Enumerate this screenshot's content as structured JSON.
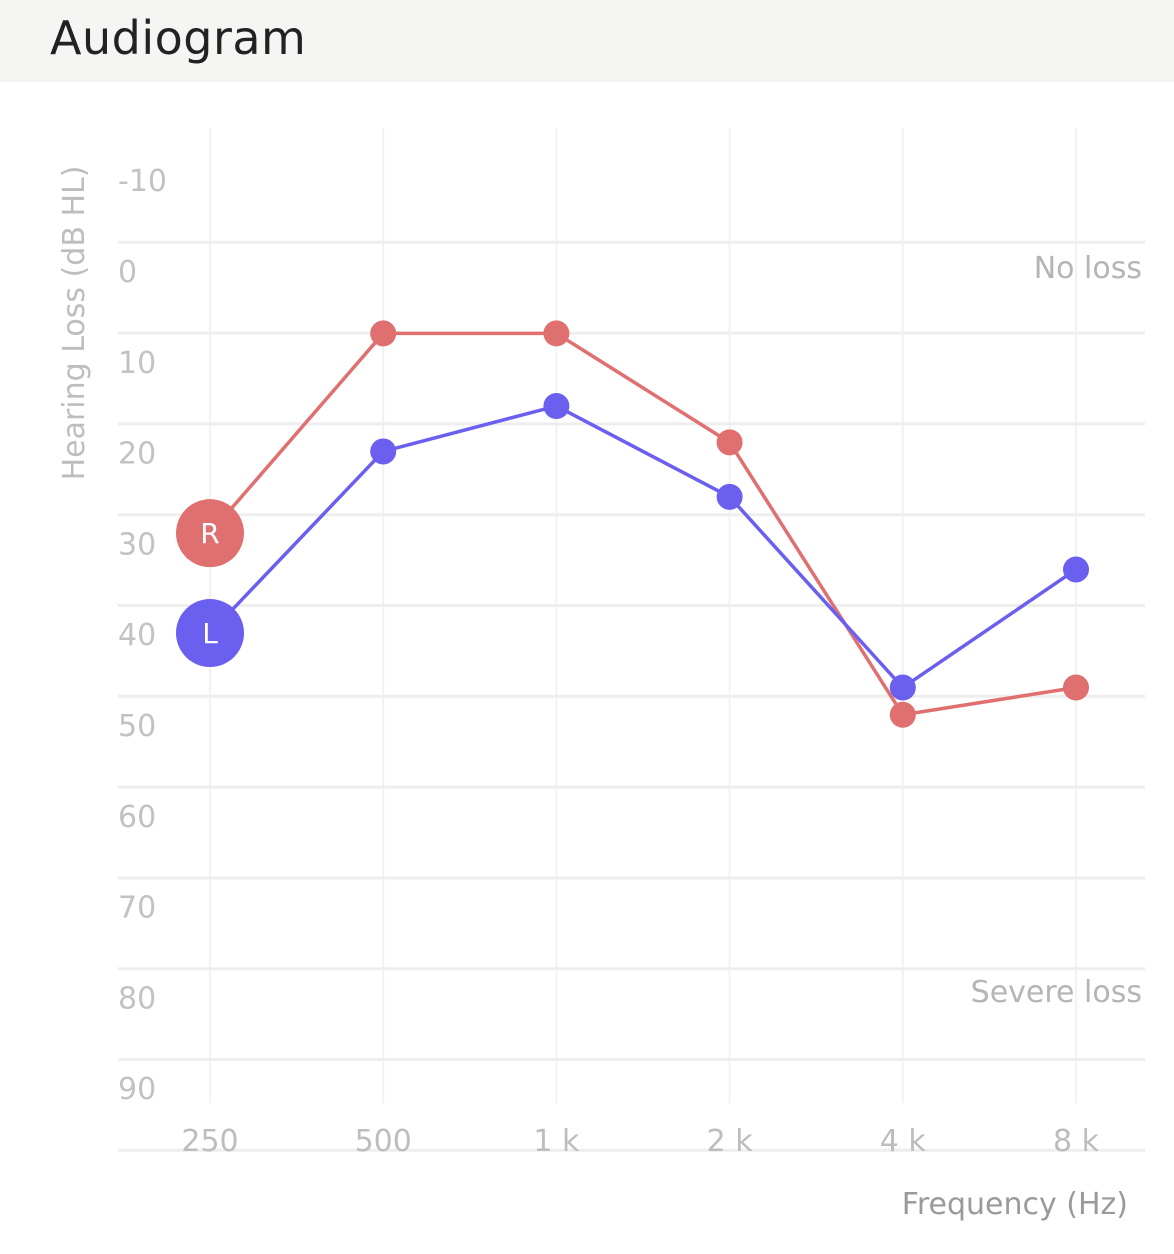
{
  "header": {
    "title": "Audiogram"
  },
  "chart_data": {
    "type": "line",
    "title": "",
    "xlabel": "Frequency (Hz)",
    "ylabel": "Hearing Loss (dB HL)",
    "categories": [
      "250",
      "500",
      "1 k",
      "2 k",
      "4 k",
      "8 k"
    ],
    "y_ticks": [
      -10,
      0,
      10,
      20,
      30,
      40,
      50,
      60,
      70,
      80,
      90
    ],
    "ylim": [
      -10,
      95
    ],
    "y_inverted": true,
    "grid": true,
    "annotations": {
      "top": "No loss",
      "bottom": "Severe loss"
    },
    "series": [
      {
        "name": "R",
        "color": "#e07070",
        "values": [
          27,
          5,
          5,
          17,
          47,
          44
        ]
      },
      {
        "name": "L",
        "color": "#6b5ff0",
        "values": [
          38,
          18,
          13,
          23,
          44,
          31
        ]
      }
    ]
  }
}
